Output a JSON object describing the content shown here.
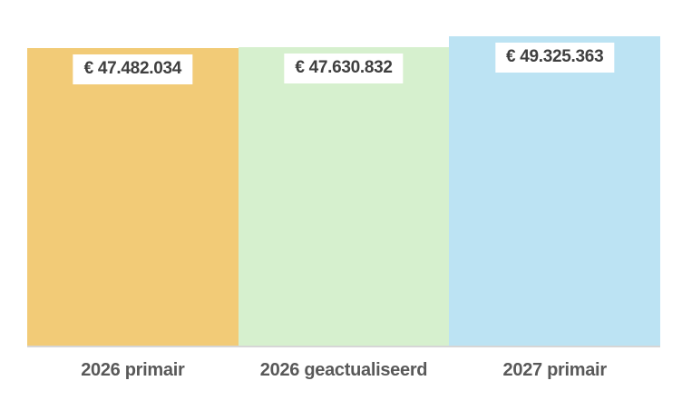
{
  "chart": {
    "background_color": "#ffffff",
    "baseline_color": "#d6d6d6",
    "value_label_background": "#ffffff",
    "value_label_text_color": "#3f3f3f",
    "axis_label_text_color": "#595959"
  },
  "chart_data": {
    "type": "bar",
    "title": "",
    "xlabel": "",
    "ylabel": "",
    "categories": [
      "2026 primair",
      "2026 geactualiseerd",
      "2027 primair"
    ],
    "values": [
      47482034,
      47630832,
      49325363
    ],
    "value_labels": [
      "€ 47.482.034",
      "€ 47.630.832",
      "€ 49.325.363"
    ],
    "bar_colors": [
      "#f2cb77",
      "#d6f0ce",
      "#bce3f3"
    ],
    "ylim": [
      0,
      55000000
    ],
    "grid": false,
    "legend": false,
    "bars_flush": true
  }
}
